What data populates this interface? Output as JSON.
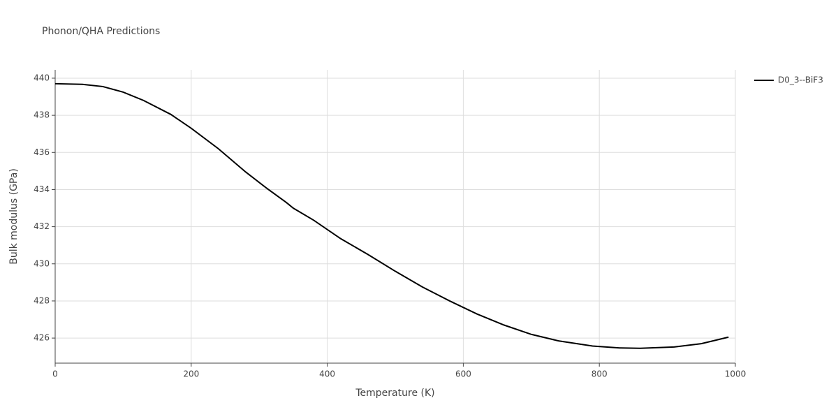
{
  "chart_data": {
    "type": "line",
    "title": "Phonon/QHA Predictions",
    "x_label": "Temperature (K)",
    "y_label": "Bulk modulus (GPa)",
    "x": [
      0,
      40,
      70,
      100,
      130,
      170,
      200,
      240,
      280,
      310,
      340,
      350,
      380,
      420,
      460,
      500,
      540,
      580,
      620,
      660,
      700,
      740,
      790,
      830,
      860,
      910,
      950,
      990
    ],
    "series": [
      {
        "name": "D0_3--BiF3",
        "color": "#000000",
        "values": [
          439.7,
          439.67,
          439.55,
          439.25,
          438.8,
          438.05,
          437.3,
          436.2,
          434.95,
          434.1,
          433.3,
          433.0,
          432.35,
          431.35,
          430.5,
          429.6,
          428.75,
          428.0,
          427.3,
          426.7,
          426.2,
          425.85,
          425.57,
          425.47,
          425.45,
          425.52,
          425.7,
          426.05
        ]
      }
    ],
    "xlim": [
      0,
      1000
    ],
    "xticks": [
      0,
      200,
      400,
      600,
      800,
      1000
    ],
    "ylim": [
      424.65,
      440.45
    ],
    "yticks": [
      426,
      428,
      430,
      432,
      434,
      436,
      438,
      440
    ],
    "grid": true,
    "legend": "right"
  }
}
